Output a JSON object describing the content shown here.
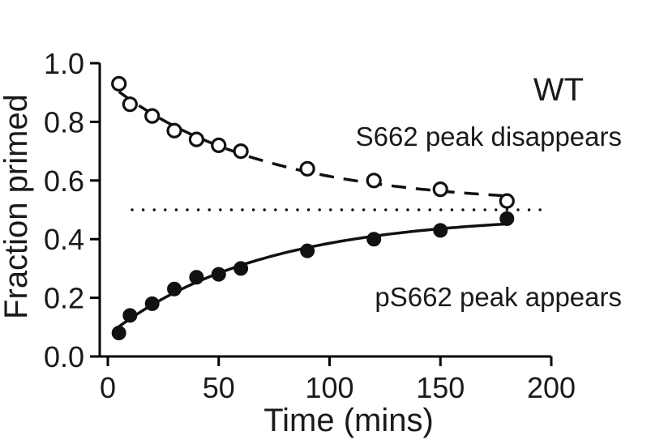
{
  "chart_data": {
    "type": "scatter",
    "xlabel": "Time (mins)",
    "ylabel": "Fraction primed",
    "xlim": [
      0,
      200
    ],
    "ylim": [
      0.0,
      1.0
    ],
    "xticks": [
      "0",
      "50",
      "100",
      "150",
      "200"
    ],
    "yticks": [
      "0.0",
      "0.2",
      "0.4",
      "0.6",
      "0.8",
      "1.0"
    ],
    "grid": false,
    "panel_label": "WT",
    "series": [
      {
        "name": "S662 peak disappears",
        "marker": "open-circle",
        "line": "dashed",
        "x": [
          5,
          10,
          20,
          30,
          40,
          50,
          60,
          90,
          120,
          150,
          180
        ],
        "y": [
          0.93,
          0.86,
          0.82,
          0.77,
          0.74,
          0.72,
          0.7,
          0.64,
          0.6,
          0.57,
          0.53
        ]
      },
      {
        "name": "pS662 peak appears",
        "marker": "filled-circle",
        "line": "solid",
        "x": [
          5,
          10,
          20,
          30,
          40,
          50,
          60,
          90,
          120,
          150,
          180
        ],
        "y": [
          0.08,
          0.14,
          0.18,
          0.23,
          0.27,
          0.28,
          0.3,
          0.36,
          0.4,
          0.43,
          0.47
        ]
      }
    ],
    "reference_line": {
      "y": 0.5,
      "x_range": [
        0,
        200
      ],
      "style": "dotted"
    },
    "colors": {
      "ink": "#111111"
    }
  }
}
